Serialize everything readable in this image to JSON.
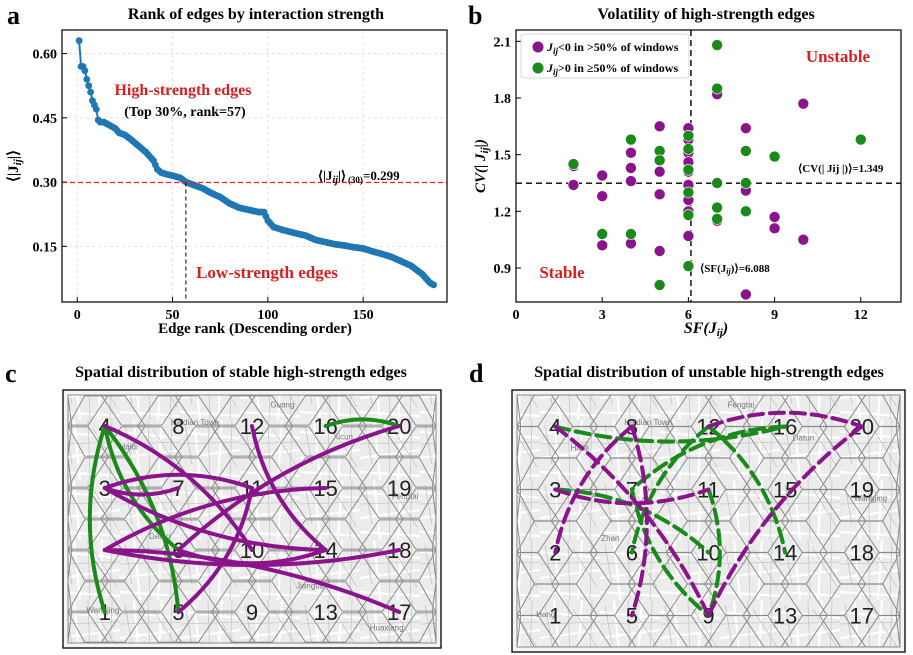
{
  "panel_letters": {
    "a": "a",
    "b": "b",
    "c": "c",
    "d": "d"
  },
  "colors": {
    "line": "#1f77b4",
    "ref_red": "#e8262a",
    "annot_red": "#d42020",
    "purple": "#8b148d",
    "green": "#1a8a1a"
  },
  "chart_data": [
    {
      "id": "a",
      "type": "line",
      "title": "Rank of edges by interaction strength",
      "xlabel": "Edge rank (Descending order)",
      "ylabel": "⟨|J",
      "ylabel_sub": "ij",
      "ylabel_end": "|⟩",
      "xlim": [
        -8,
        194
      ],
      "ylim": [
        0.02,
        0.655
      ],
      "xticks": [
        0,
        50,
        100,
        150
      ],
      "xtick_labels": [
        "0",
        "50",
        "100",
        "150"
      ],
      "yticks": [
        0.15,
        0.3,
        0.45,
        0.6
      ],
      "ytick_labels": [
        "0.15",
        "0.30",
        "0.45",
        "0.60"
      ],
      "grid": true,
      "series": [
        {
          "name": "edge strength",
          "points": [
            [
              1,
              0.63
            ],
            [
              2,
              0.57
            ],
            [
              3,
              0.57
            ],
            [
              4,
              0.56
            ],
            [
              5,
              0.54
            ],
            [
              6,
              0.525
            ],
            [
              7,
              0.51
            ],
            [
              8,
              0.49
            ],
            [
              9,
              0.48
            ],
            [
              10,
              0.47
            ],
            [
              11,
              0.445
            ],
            [
              12,
              0.44
            ],
            [
              14,
              0.44
            ],
            [
              16,
              0.435
            ],
            [
              18,
              0.43
            ],
            [
              20,
              0.425
            ],
            [
              22,
              0.415
            ],
            [
              25,
              0.41
            ],
            [
              28,
              0.4
            ],
            [
              32,
              0.385
            ],
            [
              36,
              0.37
            ],
            [
              40,
              0.35
            ],
            [
              42,
              0.33
            ],
            [
              44,
              0.322
            ],
            [
              47,
              0.318
            ],
            [
              50,
              0.315
            ],
            [
              54,
              0.31
            ],
            [
              57,
              0.3
            ],
            [
              60,
              0.295
            ],
            [
              63,
              0.29
            ],
            [
              66,
              0.285
            ],
            [
              70,
              0.275
            ],
            [
              75,
              0.265
            ],
            [
              80,
              0.25
            ],
            [
              85,
              0.24
            ],
            [
              90,
              0.235
            ],
            [
              95,
              0.23
            ],
            [
              98,
              0.23
            ],
            [
              100,
              0.21
            ],
            [
              103,
              0.195
            ],
            [
              108,
              0.188
            ],
            [
              115,
              0.18
            ],
            [
              120,
              0.175
            ],
            [
              125,
              0.165
            ],
            [
              130,
              0.16
            ],
            [
              135,
              0.155
            ],
            [
              140,
              0.152
            ],
            [
              145,
              0.148
            ],
            [
              150,
              0.145
            ],
            [
              155,
              0.138
            ],
            [
              160,
              0.132
            ],
            [
              165,
              0.125
            ],
            [
              170,
              0.115
            ],
            [
              175,
              0.105
            ],
            [
              178,
              0.095
            ],
            [
              181,
              0.085
            ],
            [
              183,
              0.075
            ],
            [
              185,
              0.065
            ],
            [
              187,
              0.06
            ]
          ]
        }
      ],
      "reference_line": {
        "y": 0.299,
        "label": "⟨|J",
        "label_sub": "ij",
        "label_mid": "|⟩",
        "label_sub2": "(30)",
        "label_value": "=0.299"
      },
      "cutoff_line": {
        "x": 57
      },
      "annotations": {
        "high": "High-strength edges",
        "high_detail": "(Top 30%, rank=57)",
        "low": "Low-strength edges"
      }
    },
    {
      "id": "b",
      "type": "scatter",
      "title": "Volatility of high-strength edges",
      "xlabel": "SF(J",
      "xlabel_sub": "ij",
      "xlabel_end": ")",
      "ylabel": "CV(| J",
      "ylabel_sub": "ij",
      "ylabel_end": "|)",
      "xlim": [
        0,
        13.4
      ],
      "ylim": [
        0.72,
        2.16
      ],
      "xticks": [
        0,
        3,
        6,
        9,
        12
      ],
      "xtick_labels": [
        "0",
        "3",
        "6",
        "9",
        "12"
      ],
      "yticks": [
        0.9,
        1.2,
        1.5,
        1.8,
        2.1
      ],
      "ytick_labels": [
        "0.9",
        "1.2",
        "1.5",
        "1.8",
        "2.1"
      ],
      "legend": {
        "placement": "top-left",
        "entries": [
          {
            "pre": "J",
            "sub": "ij",
            "post": "<0 in >50% of windows",
            "color": "purple"
          },
          {
            "pre": "J",
            "sub": "ij",
            "post": ">0 in ≥50% of windows",
            "color": "green"
          }
        ]
      },
      "series": [
        {
          "name": "purple",
          "points": [
            [
              2,
              1.44
            ],
            [
              2,
              1.34
            ],
            [
              3,
              1.39
            ],
            [
              3,
              1.28
            ],
            [
              3,
              1.02
            ],
            [
              4,
              1.36
            ],
            [
              4,
              1.51
            ],
            [
              4,
              1.43
            ],
            [
              4,
              1.03
            ],
            [
              5,
              1.65
            ],
            [
              5,
              1.41
            ],
            [
              5,
              1.29
            ],
            [
              5,
              0.99
            ],
            [
              6,
              1.64
            ],
            [
              6,
              1.58
            ],
            [
              6,
              1.51
            ],
            [
              6,
              1.46
            ],
            [
              6,
              1.41
            ],
            [
              6,
              1.34
            ],
            [
              6,
              1.26
            ],
            [
              6,
              1.2
            ],
            [
              6,
              1.07
            ],
            [
              7,
              1.82
            ],
            [
              7,
              1.15
            ],
            [
              8,
              1.64
            ],
            [
              8,
              1.31
            ],
            [
              8,
              0.76
            ],
            [
              9,
              1.17
            ],
            [
              9,
              1.11
            ],
            [
              10,
              1.77
            ],
            [
              10,
              1.05
            ]
          ]
        },
        {
          "name": "green",
          "points": [
            [
              2,
              1.45
            ],
            [
              3,
              1.08
            ],
            [
              4,
              1.58
            ],
            [
              4,
              1.08
            ],
            [
              5,
              1.52
            ],
            [
              5,
              1.47
            ],
            [
              5,
              0.81
            ],
            [
              6,
              1.6
            ],
            [
              6,
              1.53
            ],
            [
              6,
              1.42
            ],
            [
              6,
              1.3
            ],
            [
              6,
              1.18
            ],
            [
              6,
              0.91
            ],
            [
              7,
              2.08
            ],
            [
              7,
              1.85
            ],
            [
              7,
              1.35
            ],
            [
              7,
              1.22
            ],
            [
              7,
              1.16
            ],
            [
              8,
              1.52
            ],
            [
              8,
              1.35
            ],
            [
              8,
              1.2
            ],
            [
              9,
              1.49
            ],
            [
              12,
              1.58
            ]
          ]
        }
      ],
      "reference_lines": {
        "x": 6.088,
        "y": 1.349,
        "x_label": "⟨SF(J",
        "x_label_sub": "ij",
        "x_label_end": ")⟩=6.088",
        "y_label": "⟨CV(| Jij |)⟩=1.349"
      },
      "annotations": {
        "unstable": "Unstable",
        "stable": "Stable"
      }
    }
  ],
  "panel_c": {
    "title": "Spatial distribution of stable high-strength edges",
    "cells": [
      {
        "id": "1",
        "col": 0,
        "row": 3
      },
      {
        "id": "2",
        "col": 0,
        "row": 2
      },
      {
        "id": "3",
        "col": 0,
        "row": 1
      },
      {
        "id": "4",
        "col": 0,
        "row": 0
      },
      {
        "id": "5",
        "col": 1,
        "row": 3
      },
      {
        "id": "6",
        "col": 1,
        "row": 2
      },
      {
        "id": "7",
        "col": 1,
        "row": 1
      },
      {
        "id": "8",
        "col": 1,
        "row": 0
      },
      {
        "id": "9",
        "col": 2,
        "row": 3
      },
      {
        "id": "10",
        "col": 2,
        "row": 2
      },
      {
        "id": "11",
        "col": 2,
        "row": 1
      },
      {
        "id": "12",
        "col": 2,
        "row": 0
      },
      {
        "id": "13",
        "col": 3,
        "row": 3
      },
      {
        "id": "14",
        "col": 3,
        "row": 2
      },
      {
        "id": "15",
        "col": 3,
        "row": 1
      },
      {
        "id": "16",
        "col": 3,
        "row": 0
      },
      {
        "id": "17",
        "col": 4,
        "row": 3
      },
      {
        "id": "18",
        "col": 4,
        "row": 2
      },
      {
        "id": "19",
        "col": 4,
        "row": 1
      },
      {
        "id": "20",
        "col": 4,
        "row": 0
      }
    ],
    "visible_labels": [
      "4",
      "8",
      "12",
      "16",
      "20",
      "3",
      "7",
      "11",
      "15",
      "19",
      "6",
      "10",
      "14",
      "18",
      "1",
      "5",
      "9",
      "13",
      "17"
    ],
    "map_labels": [
      "Haidian Town",
      "Haidi",
      "Guang",
      "Xicun",
      "Fengtai",
      "Datun",
      "Wangjing",
      "Jiangtai",
      "Huaxiang"
    ],
    "edges": [
      {
        "from": "4",
        "to": "1",
        "color": "green"
      },
      {
        "from": "4",
        "to": "5",
        "color": "green"
      },
      {
        "from": "4",
        "to": "6",
        "color": "green"
      },
      {
        "from": "16",
        "to": "20",
        "color": "green"
      },
      {
        "from": "3",
        "to": "7",
        "color": "purple"
      },
      {
        "from": "3",
        "to": "11",
        "color": "purple"
      },
      {
        "from": "3",
        "to": "14",
        "color": "purple"
      },
      {
        "from": "4",
        "to": "10",
        "color": "purple"
      },
      {
        "from": "12",
        "to": "14",
        "color": "purple"
      },
      {
        "from": "2",
        "to": "15",
        "color": "purple"
      },
      {
        "from": "2",
        "to": "18",
        "color": "purple"
      },
      {
        "from": "2",
        "to": "17",
        "color": "purple"
      },
      {
        "from": "20",
        "to": "6",
        "color": "purple"
      },
      {
        "from": "11",
        "to": "5",
        "color": "purple"
      },
      {
        "from": "6",
        "to": "14",
        "color": "purple"
      }
    ]
  },
  "panel_d": {
    "title": "Spatial distribution of unstable high-strength edges",
    "visible_labels": [
      "4",
      "8",
      "12",
      "16",
      "20",
      "3",
      "7",
      "11",
      "15",
      "19",
      "2",
      "6",
      "10",
      "14",
      "18",
      "1",
      "5",
      "9",
      "13",
      "17"
    ],
    "map_labels": [
      "Haidian Town",
      "Haidi",
      "Fengtai",
      "Datun",
      "Wangjing",
      "Zhan",
      "Hang"
    ],
    "edges": [
      {
        "from": "4",
        "to": "16",
        "color": "green"
      },
      {
        "from": "12",
        "to": "14",
        "color": "green"
      },
      {
        "from": "16",
        "to": "7",
        "color": "green"
      },
      {
        "from": "3",
        "to": "10",
        "color": "green"
      },
      {
        "from": "7",
        "to": "9",
        "color": "green"
      },
      {
        "from": "11",
        "to": "9",
        "color": "green"
      },
      {
        "from": "12",
        "to": "6",
        "color": "green"
      },
      {
        "from": "4",
        "to": "9",
        "color": "purple"
      },
      {
        "from": "8",
        "to": "2",
        "color": "purple"
      },
      {
        "from": "8",
        "to": "5",
        "color": "purple"
      },
      {
        "from": "20",
        "to": "9",
        "color": "purple"
      },
      {
        "from": "12",
        "to": "20",
        "color": "purple"
      },
      {
        "from": "3",
        "to": "11",
        "color": "purple"
      }
    ]
  }
}
